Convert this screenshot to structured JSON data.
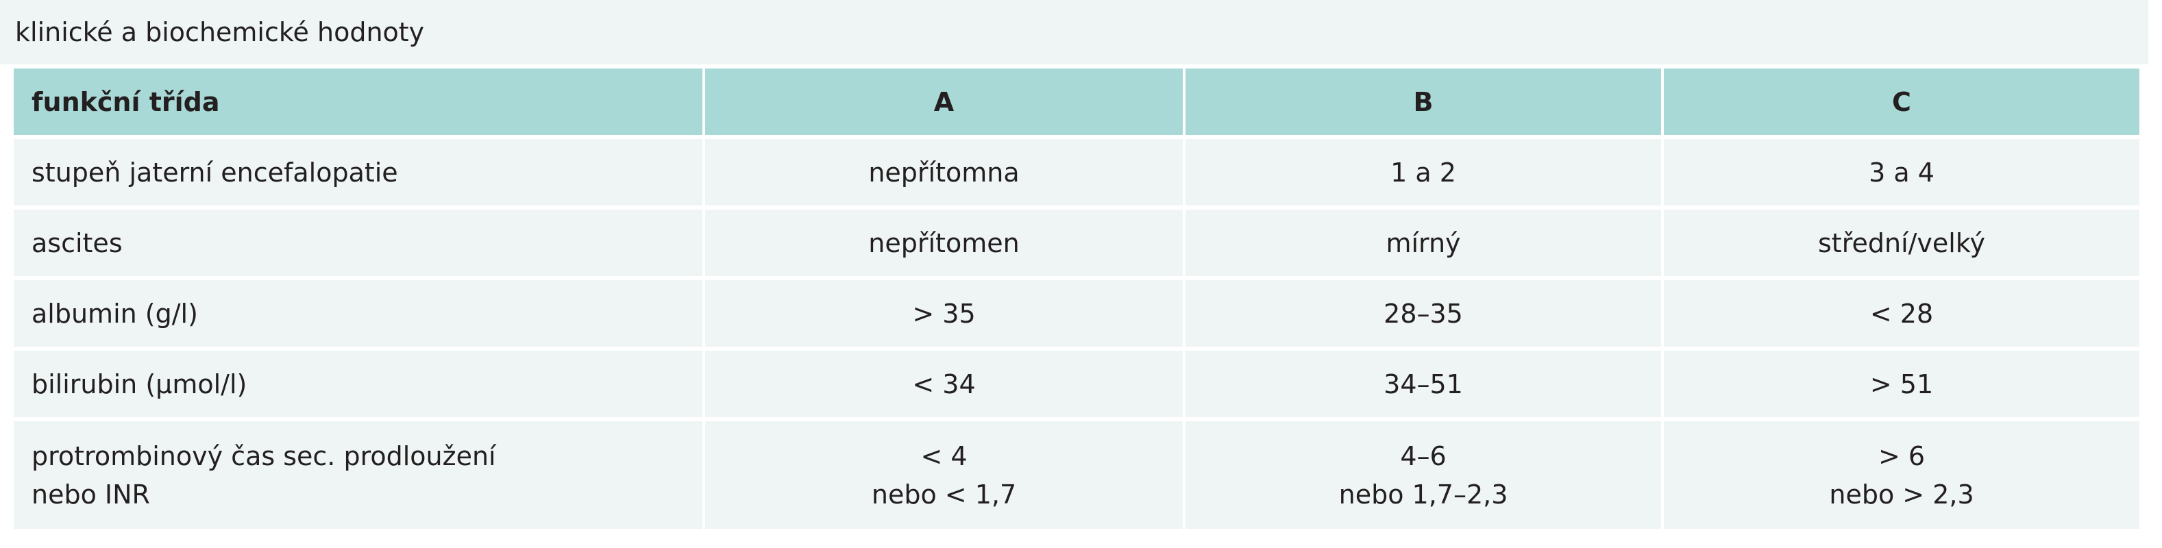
{
  "caption": "klinické a biochemické hodnoty",
  "table": {
    "header": [
      "funkční třída",
      "A",
      "B",
      "C"
    ],
    "rows": [
      [
        [
          "stupeň jaterní encefalopatie"
        ],
        [
          "nepřítomna"
        ],
        [
          "1 a 2"
        ],
        [
          "3 a 4"
        ]
      ],
      [
        [
          "ascites"
        ],
        [
          "nepřítomen"
        ],
        [
          "mírný"
        ],
        [
          "střední/velký"
        ]
      ],
      [
        [
          "albumin (g/l)"
        ],
        [
          "> 35"
        ],
        [
          "28–35"
        ],
        [
          "< 28"
        ]
      ],
      [
        [
          "bilirubin (µmol/l)"
        ],
        [
          "< 34"
        ],
        [
          "34–51"
        ],
        [
          "> 51"
        ]
      ],
      [
        [
          "protrombinový čas sec. prodloužení",
          "nebo INR"
        ],
        [
          "< 4",
          "nebo < 1,7"
        ],
        [
          "4–6",
          "nebo 1,7–2,3"
        ],
        [
          "> 6",
          "nebo > 2,3"
        ]
      ]
    ]
  }
}
